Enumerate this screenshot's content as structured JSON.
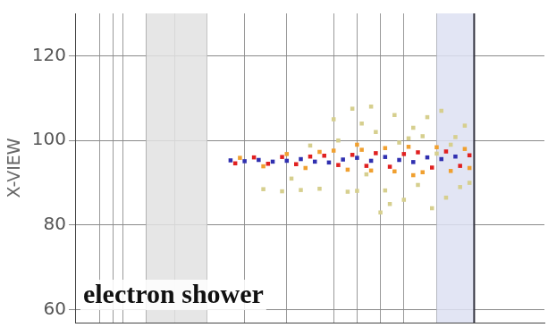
{
  "chart_data": {
    "type": "scatter",
    "y_label": "X-VIEW",
    "annotation": "electron shower",
    "xlim": [
      0,
      100
    ],
    "xticks": [
      5,
      8,
      10,
      15,
      21,
      28,
      36,
      45,
      55,
      60,
      65,
      70,
      77
    ],
    "ylim": [
      57,
      130
    ],
    "yticks": [
      60,
      80,
      100,
      120
    ],
    "grid": true,
    "tick_labels": "y",
    "marker": "square",
    "shaded_regions": [
      {
        "xlim": [
          15,
          28
        ],
        "color": "#e2e2e2"
      },
      {
        "xlim": [
          77,
          85
        ],
        "color": "#dde0f2"
      }
    ],
    "detector_boundary": 85,
    "series": [
      {
        "color": "#d6cf8e",
        "x": [
          40,
          44,
          48,
          52,
          55,
          58,
          61,
          64,
          66,
          68,
          70,
          72,
          74,
          76,
          78,
          80,
          82,
          84,
          56,
          60,
          63,
          67,
          71,
          75,
          79,
          83,
          50,
          46,
          62,
          69,
          73,
          77,
          81,
          65,
          59
        ],
        "y": [
          88.5,
          88.0,
          88.3,
          88.6,
          105,
          87.9,
          104,
          102,
          88.2,
          106,
          86,
          103,
          101,
          84,
          107,
          99,
          89,
          90,
          100,
          88.1,
          108,
          85,
          100.5,
          105.5,
          86.5,
          103.5,
          98.8,
          91,
          92,
          99.5,
          89.5,
          96.9,
          100.8,
          83,
          107.5
        ]
      },
      {
        "color": "#f0a030",
        "x": [
          35,
          40,
          45,
          49,
          52,
          55,
          58,
          61,
          63,
          66,
          68,
          71,
          74,
          77,
          80,
          83,
          84,
          60,
          72
        ],
        "y": [
          95.9,
          93.9,
          96.8,
          93.5,
          97.3,
          97.6,
          93.1,
          97.8,
          92.9,
          98.2,
          92.7,
          98.5,
          92.5,
          98.4,
          92.8,
          98.0,
          93.5,
          99.0,
          91.8
        ]
      },
      {
        "color": "#e02020",
        "x": [
          34,
          38,
          41,
          44,
          47,
          50,
          53,
          56,
          59,
          62,
          64,
          67,
          70,
          73,
          76,
          79,
          82,
          84
        ],
        "y": [
          94.6,
          96.0,
          94.5,
          96.1,
          94.4,
          96.2,
          96.4,
          94.2,
          96.6,
          94.0,
          97.0,
          93.8,
          96.8,
          97.2,
          93.6,
          97.4,
          94.0,
          96.5
        ]
      },
      {
        "color": "#3030b0",
        "x": [
          33,
          36,
          39,
          42,
          45,
          48,
          51,
          54,
          57,
          60,
          63,
          66,
          69,
          72,
          75,
          78,
          81
        ],
        "y": [
          95.3,
          95.1,
          95.4,
          95.0,
          95.2,
          95.6,
          95.0,
          94.8,
          95.5,
          95.9,
          95.2,
          96.1,
          95.4,
          94.9,
          96.0,
          95.6,
          96.2
        ]
      }
    ]
  }
}
